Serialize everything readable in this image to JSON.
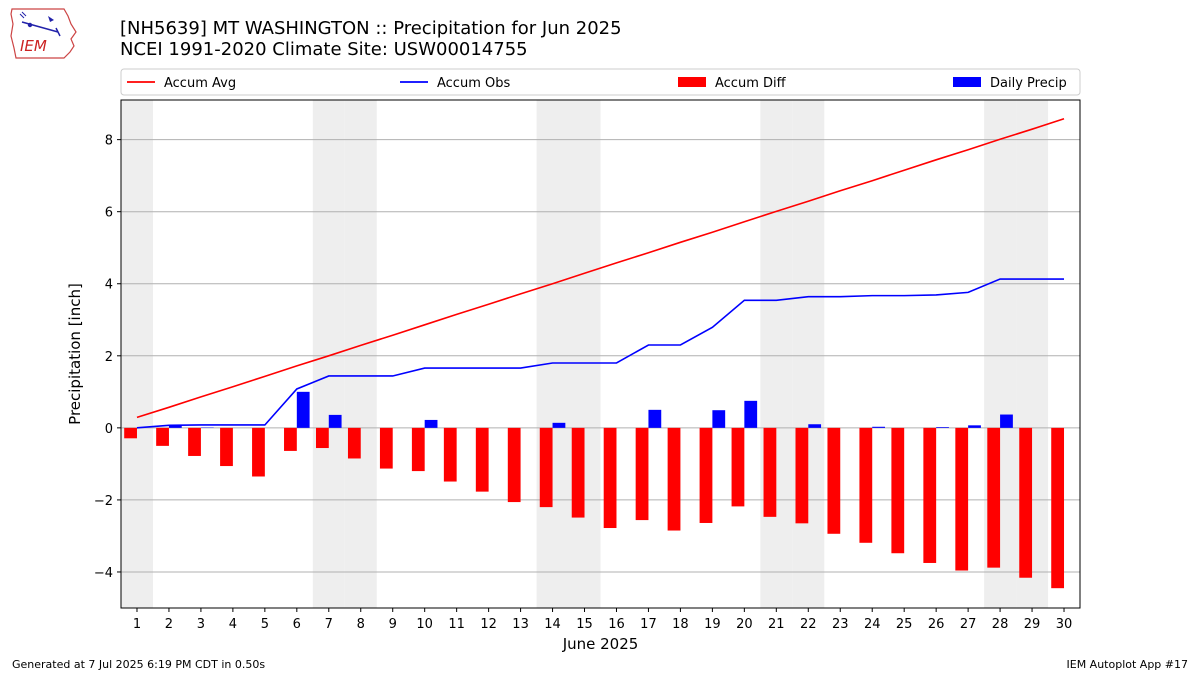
{
  "header": {
    "title_line1": "[NH5639] MT WASHINGTON :: Precipitation for Jun 2025",
    "title_line2": "NCEI 1991-2020 Climate Site: USW00014755",
    "logo_text": "IEM"
  },
  "footer": {
    "left": "Generated at 7 Jul 2025 6:19 PM CDT in 0.50s",
    "right": "IEM Autoplot App #17"
  },
  "colors": {
    "accum_avg": "#ff0000",
    "accum_obs": "#0000ff",
    "accum_diff": "#ff0000",
    "daily_precip": "#0000ff",
    "weekend_shade": "#eeeeee",
    "grid": "#b0b0b0"
  },
  "chart_data": {
    "type": "bar",
    "xlabel": "June 2025",
    "ylabel": "Precipitation [inch]",
    "xlim": [
      0.5,
      30.5
    ],
    "ylim": [
      -5,
      9.1
    ],
    "yticks": [
      -4,
      -2,
      0,
      2,
      4,
      6,
      8
    ],
    "grid": "horizontal",
    "legend_placement": "top",
    "days": [
      1,
      2,
      3,
      4,
      5,
      6,
      7,
      8,
      9,
      10,
      11,
      12,
      13,
      14,
      15,
      16,
      17,
      18,
      19,
      20,
      21,
      22,
      23,
      24,
      25,
      26,
      27,
      28,
      29,
      30
    ],
    "weekend_days": [
      1,
      7,
      8,
      14,
      15,
      21,
      22,
      28,
      29
    ],
    "series": [
      {
        "name": "Accum Avg",
        "kind": "line",
        "values": [
          0.29,
          0.57,
          0.86,
          1.14,
          1.43,
          1.72,
          2.0,
          2.29,
          2.57,
          2.86,
          3.15,
          3.43,
          3.72,
          4.0,
          4.29,
          4.58,
          4.86,
          5.15,
          5.43,
          5.72,
          6.01,
          6.29,
          6.58,
          6.86,
          7.15,
          7.44,
          7.72,
          8.01,
          8.29,
          8.58
        ]
      },
      {
        "name": "Accum Obs",
        "kind": "line",
        "values": [
          0.0,
          0.07,
          0.08,
          0.08,
          0.08,
          1.08,
          1.44,
          1.44,
          1.44,
          1.66,
          1.66,
          1.66,
          1.66,
          1.8,
          1.8,
          1.8,
          2.3,
          2.3,
          2.79,
          3.54,
          3.54,
          3.64,
          3.64,
          3.67,
          3.67,
          3.69,
          3.76,
          4.13,
          4.13,
          4.13
        ]
      },
      {
        "name": "Accum Diff",
        "kind": "bar",
        "values": [
          -0.29,
          -0.5,
          -0.78,
          -1.06,
          -1.35,
          -0.64,
          -0.56,
          -0.85,
          -1.13,
          -1.2,
          -1.49,
          -1.77,
          -2.06,
          -2.2,
          -2.49,
          -2.78,
          -2.56,
          -2.85,
          -2.64,
          -2.18,
          -2.47,
          -2.65,
          -2.94,
          -3.19,
          -3.48,
          -3.75,
          -3.96,
          -3.88,
          -4.16,
          -4.45
        ]
      },
      {
        "name": "Daily Precip",
        "kind": "bar",
        "values": [
          0.0,
          0.07,
          0.01,
          0.0,
          0.0,
          1.0,
          0.36,
          0.0,
          0.0,
          0.22,
          0.0,
          0.0,
          0.0,
          0.14,
          0.0,
          0.0,
          0.5,
          0.0,
          0.49,
          0.75,
          0.0,
          0.1,
          0.0,
          0.03,
          0.0,
          0.02,
          0.07,
          0.37,
          0.0,
          0.0
        ]
      }
    ]
  }
}
